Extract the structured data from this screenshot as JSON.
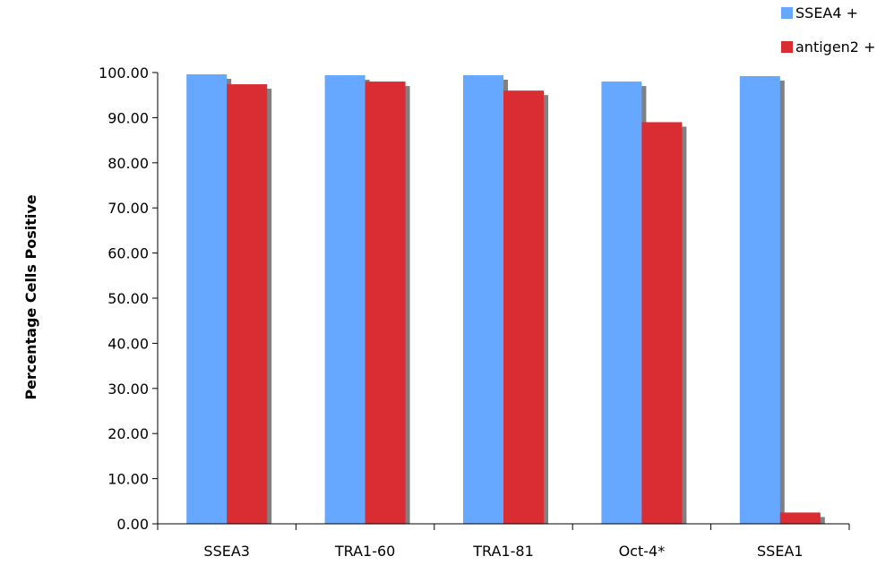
{
  "chart_data": {
    "type": "bar",
    "title": "",
    "xlabel": "",
    "ylabel": "Percentage Cells Positive",
    "categories": [
      "SSEA3",
      "TRA1-60",
      "TRA1-81",
      "Oct-4*",
      "SSEA1"
    ],
    "series": [
      {
        "name": "SSEA4 +",
        "color": "#66A8FF",
        "values": [
          99.6,
          99.4,
          99.4,
          98.0,
          99.2
        ]
      },
      {
        "name": "antigen2 +",
        "color": "#DA2C33",
        "values": [
          97.4,
          98.0,
          96.0,
          89.0,
          2.5
        ]
      }
    ],
    "ylim": [
      0,
      100
    ],
    "yticks": [
      "0.00",
      "10.00",
      "20.00",
      "30.00",
      "40.00",
      "50.00",
      "60.00",
      "70.00",
      "80.00",
      "90.00",
      "100.00"
    ],
    "grid": false,
    "legend_position": "top-right",
    "shadow_color": "#808080"
  }
}
